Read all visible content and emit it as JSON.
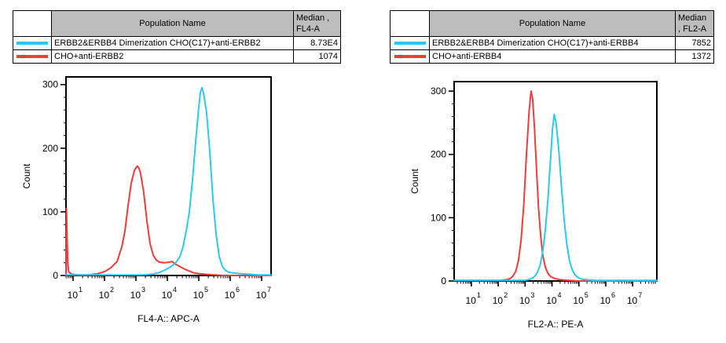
{
  "tables": [
    {
      "header": {
        "population": "Population Name",
        "median_line1": "Median ,",
        "median_line2": "FL4-A"
      },
      "rows": [
        {
          "color": "#2bc9f2",
          "name": "ERBB2&ERBB4 Dimerization CHO(C17)+anti-ERBB2",
          "median": "8.73E4"
        },
        {
          "color": "#f23b3b",
          "name": "CHO+anti-ERBB2",
          "median": "1074"
        }
      ]
    },
    {
      "header": {
        "population": "Population Name",
        "median_line1": "Median",
        "median_line2": ", FL2-A"
      },
      "rows": [
        {
          "color": "#2bc9f2",
          "name": "ERBB2&ERBB4 Dimerization CHO(C17)+anti-ERBB4",
          "median": "7852"
        },
        {
          "color": "#f23b3b",
          "name": "CHO+anti-ERBB4",
          "median": "1372"
        }
      ]
    }
  ],
  "chart_data": [
    {
      "type": "line",
      "title": "",
      "xlabel": "FL4-A:: APC-A",
      "ylabel": "Count",
      "x_scale": "log10",
      "xlim_log10": [
        0.775,
        7.3
      ],
      "x_tick_exponents": [
        1,
        2,
        3,
        4,
        5,
        6,
        7
      ],
      "ylim": [
        0,
        312
      ],
      "y_ticks": [
        0,
        100,
        200,
        300
      ],
      "y_minor_step": 20,
      "grid": false,
      "legend_position": "table-above",
      "series": [
        {
          "name": "CHO+anti-ERBB2",
          "color": "#f23b3b",
          "median": "1074",
          "points_log10x_count": [
            [
              0.775,
              0
            ],
            [
              0.78,
              60
            ],
            [
              0.79,
              105
            ],
            [
              0.81,
              60
            ],
            [
              0.83,
              20
            ],
            [
              0.86,
              6
            ],
            [
              0.95,
              2
            ],
            [
              1.2,
              1
            ],
            [
              1.5,
              1
            ],
            [
              1.8,
              3
            ],
            [
              2.0,
              6
            ],
            [
              2.2,
              12
            ],
            [
              2.4,
              22
            ],
            [
              2.55,
              45
            ],
            [
              2.65,
              70
            ],
            [
              2.75,
              110
            ],
            [
              2.85,
              145
            ],
            [
              2.95,
              165
            ],
            [
              3.0,
              169
            ],
            [
              3.05,
              172
            ],
            [
              3.1,
              168
            ],
            [
              3.15,
              160
            ],
            [
              3.25,
              130
            ],
            [
              3.35,
              85
            ],
            [
              3.45,
              50
            ],
            [
              3.55,
              32
            ],
            [
              3.65,
              24
            ],
            [
              3.75,
              21
            ],
            [
              3.9,
              20
            ],
            [
              4.05,
              21
            ],
            [
              4.15,
              22
            ],
            [
              4.25,
              18
            ],
            [
              4.4,
              14
            ],
            [
              4.55,
              10
            ],
            [
              4.7,
              7
            ],
            [
              4.85,
              4
            ],
            [
              5.0,
              3
            ],
            [
              5.2,
              2
            ],
            [
              5.5,
              1
            ],
            [
              5.8,
              0
            ],
            [
              7.3,
              0
            ]
          ]
        },
        {
          "name": "ERBB2&ERBB4 Dimerization CHO(C17)+anti-ERBB2",
          "color": "#2bc9f2",
          "median": "8.73E4",
          "points_log10x_count": [
            [
              0.775,
              1
            ],
            [
              1.5,
              1
            ],
            [
              2.5,
              1
            ],
            [
              3.2,
              1
            ],
            [
              3.5,
              2
            ],
            [
              3.7,
              4
            ],
            [
              3.9,
              8
            ],
            [
              4.05,
              12
            ],
            [
              4.2,
              17
            ],
            [
              4.3,
              22
            ],
            [
              4.4,
              30
            ],
            [
              4.5,
              45
            ],
            [
              4.6,
              70
            ],
            [
              4.7,
              100
            ],
            [
              4.8,
              150
            ],
            [
              4.9,
              210
            ],
            [
              5.0,
              265
            ],
            [
              5.05,
              288
            ],
            [
              5.1,
              295
            ],
            [
              5.15,
              287
            ],
            [
              5.25,
              255
            ],
            [
              5.35,
              195
            ],
            [
              5.45,
              120
            ],
            [
              5.55,
              65
            ],
            [
              5.65,
              30
            ],
            [
              5.75,
              14
            ],
            [
              5.85,
              8
            ],
            [
              5.95,
              5
            ],
            [
              6.1,
              4
            ],
            [
              6.3,
              3
            ],
            [
              6.6,
              2
            ],
            [
              6.9,
              1
            ],
            [
              7.3,
              1
            ]
          ]
        }
      ]
    },
    {
      "type": "line",
      "title": "",
      "xlabel": "FL2-A:: PE-A",
      "ylabel": "Count",
      "x_scale": "log10",
      "xlim_log10": [
        0.36,
        7.9
      ],
      "x_tick_exponents": [
        1,
        2,
        3,
        4,
        5,
        6,
        7
      ],
      "ylim": [
        0,
        315
      ],
      "y_ticks": [
        0,
        100,
        200,
        300
      ],
      "y_minor_step": 20,
      "grid": false,
      "legend_position": "table-above",
      "series": [
        {
          "name": "CHO+anti-ERBB4",
          "color": "#f23b3b",
          "median": "1372",
          "points_log10x_count": [
            [
              0.36,
              1
            ],
            [
              1.0,
              1
            ],
            [
              1.8,
              1
            ],
            [
              2.1,
              1
            ],
            [
              2.3,
              2
            ],
            [
              2.45,
              4
            ],
            [
              2.55,
              8
            ],
            [
              2.65,
              15
            ],
            [
              2.75,
              32
            ],
            [
              2.85,
              65
            ],
            [
              2.95,
              120
            ],
            [
              3.05,
              200
            ],
            [
              3.15,
              270
            ],
            [
              3.22,
              300
            ],
            [
              3.28,
              288
            ],
            [
              3.35,
              240
            ],
            [
              3.42,
              180
            ],
            [
              3.5,
              115
            ],
            [
              3.58,
              70
            ],
            [
              3.66,
              40
            ],
            [
              3.75,
              22
            ],
            [
              3.85,
              12
            ],
            [
              3.95,
              7
            ],
            [
              4.1,
              4
            ],
            [
              4.3,
              2
            ],
            [
              4.6,
              1
            ],
            [
              5.0,
              0
            ],
            [
              7.9,
              0
            ]
          ]
        },
        {
          "name": "ERBB2&ERBB4 Dimerization CHO(C17)+anti-ERBB4",
          "color": "#2bc9f2",
          "median": "7852",
          "points_log10x_count": [
            [
              0.36,
              1
            ],
            [
              1.5,
              1
            ],
            [
              2.5,
              1
            ],
            [
              3.0,
              1
            ],
            [
              3.2,
              3
            ],
            [
              3.35,
              7
            ],
            [
              3.45,
              13
            ],
            [
              3.55,
              24
            ],
            [
              3.65,
              45
            ],
            [
              3.75,
              80
            ],
            [
              3.85,
              130
            ],
            [
              3.95,
              195
            ],
            [
              4.02,
              240
            ],
            [
              4.08,
              263
            ],
            [
              4.15,
              250
            ],
            [
              4.25,
              208
            ],
            [
              4.35,
              150
            ],
            [
              4.45,
              98
            ],
            [
              4.55,
              58
            ],
            [
              4.65,
              32
            ],
            [
              4.75,
              18
            ],
            [
              4.85,
              10
            ],
            [
              4.95,
              6
            ],
            [
              5.1,
              3
            ],
            [
              5.3,
              2
            ],
            [
              5.6,
              1
            ],
            [
              6.0,
              1
            ],
            [
              7.9,
              1
            ]
          ]
        }
      ]
    }
  ]
}
